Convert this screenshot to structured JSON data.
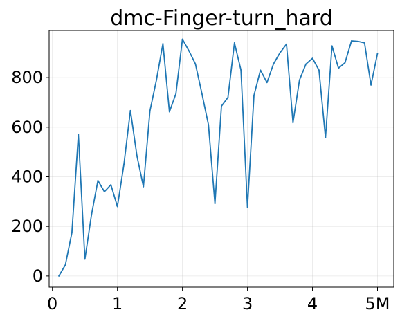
{
  "chart_data": {
    "type": "line",
    "title": "dmc-Finger-turn_hard",
    "xlabel": "",
    "ylabel": "",
    "xlim": [
      -0.05,
      5.25
    ],
    "ylim": [
      -45,
      990
    ],
    "grid": true,
    "x_ticks": [
      {
        "value": 0,
        "label": "0"
      },
      {
        "value": 1,
        "label": "1"
      },
      {
        "value": 2,
        "label": "2"
      },
      {
        "value": 3,
        "label": "3"
      },
      {
        "value": 4,
        "label": "4"
      },
      {
        "value": 5,
        "label": "5M"
      }
    ],
    "y_ticks": [
      {
        "value": 0,
        "label": "0"
      },
      {
        "value": 200,
        "label": "200"
      },
      {
        "value": 400,
        "label": "400"
      },
      {
        "value": 600,
        "label": "600"
      },
      {
        "value": 800,
        "label": "800"
      }
    ],
    "series": [
      {
        "name": "dmc-Finger-turn_hard",
        "color": "#1f77b4",
        "x": [
          0.1,
          0.2,
          0.3,
          0.4,
          0.5,
          0.6,
          0.7,
          0.8,
          0.9,
          1.0,
          1.1,
          1.2,
          1.3,
          1.4,
          1.5,
          1.6,
          1.7,
          1.8,
          1.9,
          2.0,
          2.1,
          2.2,
          2.3,
          2.4,
          2.5,
          2.6,
          2.7,
          2.8,
          2.9,
          3.0,
          3.1,
          3.2,
          3.3,
          3.4,
          3.5,
          3.6,
          3.7,
          3.8,
          3.9,
          4.0,
          4.1,
          4.2,
          4.3,
          4.4,
          4.5,
          4.6,
          4.7,
          4.8,
          4.9,
          5.0
        ],
        "values": [
          0,
          45,
          175,
          570,
          68,
          245,
          385,
          340,
          368,
          280,
          450,
          667,
          485,
          360,
          665,
          790,
          937,
          662,
          735,
          955,
          908,
          855,
          735,
          610,
          292,
          685,
          720,
          940,
          830,
          278,
          728,
          830,
          780,
          855,
          900,
          935,
          618,
          790,
          855,
          878,
          830,
          558,
          928,
          838,
          860,
          948,
          946,
          940,
          770,
          898
        ]
      }
    ]
  }
}
